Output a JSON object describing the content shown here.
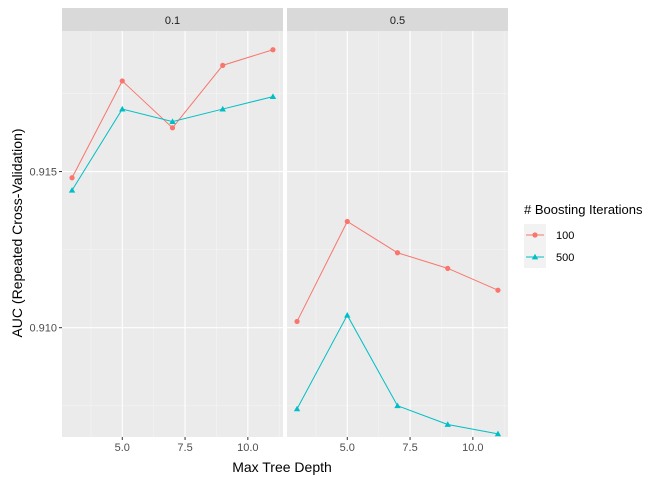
{
  "chart_data": {
    "type": "line",
    "xlabel": "Max Tree Depth",
    "ylabel": "AUC (Repeated Cross-Validation)",
    "facets": [
      "0.1",
      "0.5"
    ],
    "x": [
      3,
      5,
      7,
      9,
      11
    ],
    "xlim": [
      2.6,
      11.4
    ],
    "ylim": [
      0.9065,
      0.9195
    ],
    "x_ticks": [
      {
        "value": 5,
        "label": "5.0"
      },
      {
        "value": 7.5,
        "label": "7.5"
      },
      {
        "value": 10,
        "label": "10.0"
      }
    ],
    "y_ticks": [
      {
        "value": 0.91,
        "label": "0.910"
      },
      {
        "value": 0.915,
        "label": "0.915"
      }
    ],
    "legend": {
      "title": "# Boosting Iterations",
      "position": "right"
    },
    "series": [
      {
        "name": "100",
        "color": "#F8766D",
        "marker": "circle",
        "values": {
          "0.1": [
            0.9148,
            0.9179,
            0.9164,
            0.9184,
            0.9189
          ],
          "0.5": [
            0.9102,
            0.9134,
            0.9124,
            0.9119,
            0.9112
          ]
        }
      },
      {
        "name": "500",
        "color": "#00BFC4",
        "marker": "triangle",
        "values": {
          "0.1": [
            0.9144,
            0.917,
            0.9166,
            0.917,
            0.9174
          ],
          "0.5": [
            0.9074,
            0.9104,
            0.9075,
            0.9069,
            0.9066
          ]
        }
      }
    ],
    "grid": true
  }
}
